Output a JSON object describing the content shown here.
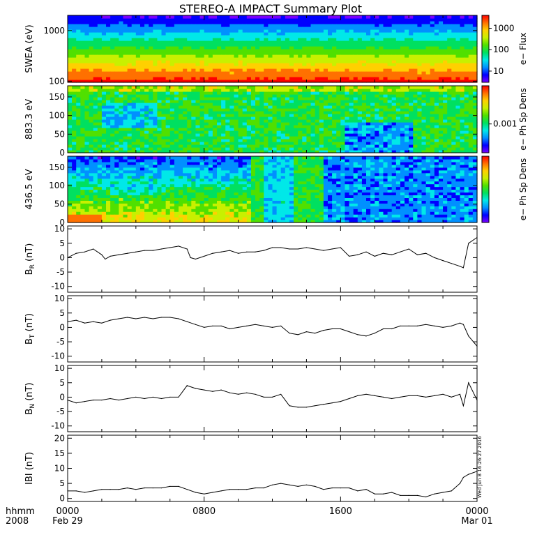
{
  "title": "STEREO-A IMPACT Summary Plot",
  "stamp": "Wed Jun  8 16:26:27 2016",
  "x_axis": {
    "row1_label": "hhmm",
    "row2_label": "2008",
    "ticks": [
      {
        "hours": 0,
        "top": "0000",
        "bottom": "Feb 29"
      },
      {
        "hours": 8,
        "top": "0800",
        "bottom": ""
      },
      {
        "hours": 16,
        "top": "1600",
        "bottom": ""
      },
      {
        "hours": 24,
        "top": "0000",
        "bottom": "Mar 01"
      }
    ]
  },
  "chart_data": [
    {
      "type": "heatmap",
      "panel": "swea",
      "ylabel": "SWEA (eV)",
      "yscale": "log",
      "ylim": [
        95,
        2000
      ],
      "yticks": [
        100,
        1000
      ],
      "colorbar_label": "e− Flux",
      "colorbar_scale": "log",
      "colorbar_range": [
        3,
        4000
      ],
      "colorbar_ticks": [
        10,
        100,
        1000
      ],
      "colors": [
        "#7b00ff",
        "#0000ff",
        "#0090ff",
        "#00e8e8",
        "#00e060",
        "#50e000",
        "#c8f000",
        "#ffd000",
        "#ff7000",
        "#ff0000"
      ]
    },
    {
      "type": "heatmap",
      "panel": "pad883",
      "ylabel": "883.3 eV",
      "ylim": [
        0,
        180
      ],
      "yticks": [
        0,
        50,
        100,
        150
      ],
      "colorbar_label": "e− Ph Sp Dens",
      "colorbar_ticks": [
        0.001
      ]
    },
    {
      "type": "heatmap",
      "panel": "pad436",
      "ylabel": "436.5 eV",
      "ylim": [
        0,
        180
      ],
      "yticks": [
        0,
        50,
        100,
        150
      ],
      "colorbar_label": "e− Ph Sp Dens",
      "colorbar_ticks": []
    },
    {
      "type": "line",
      "panel": "br",
      "ylabel": "B_R (nT)",
      "ylim": [
        -12,
        11
      ],
      "yticks": [
        -10,
        -5,
        0,
        5,
        10
      ],
      "x": [
        0,
        0.5,
        1,
        1.5,
        2,
        2.2,
        2.5,
        3,
        3.5,
        4,
        4.5,
        5,
        5.5,
        6,
        6.5,
        7,
        7.2,
        7.5,
        8,
        8.5,
        9,
        9.5,
        10,
        10.5,
        11,
        11.5,
        12,
        12.5,
        13,
        13.5,
        14,
        14.5,
        15,
        15.5,
        16,
        16.5,
        17,
        17.5,
        18,
        18.5,
        19,
        19.5,
        20,
        20.5,
        21,
        21.5,
        22,
        22.5,
        23,
        23.2,
        23.5,
        24
      ],
      "values": [
        0,
        1.5,
        2,
        3,
        1,
        -0.5,
        0.5,
        1,
        1.5,
        2,
        2.5,
        2.5,
        3,
        3.5,
        4,
        3,
        0,
        -0.5,
        0.5,
        1.5,
        2,
        2.5,
        1.5,
        2,
        2,
        2.5,
        3.5,
        3.5,
        3,
        3,
        3.5,
        3,
        2.5,
        3,
        3.5,
        0.5,
        1,
        2,
        0.5,
        1.5,
        1,
        2,
        3,
        1,
        1.5,
        0,
        -1,
        -2,
        -3,
        -3.5,
        5,
        7
      ]
    },
    {
      "type": "line",
      "panel": "bt",
      "ylabel": "B_T (nT)",
      "ylim": [
        -12,
        11
      ],
      "yticks": [
        -10,
        -5,
        0,
        5,
        10
      ],
      "x": [
        0,
        0.5,
        1,
        1.5,
        2,
        2.5,
        3,
        3.5,
        4,
        4.5,
        5,
        5.5,
        6,
        6.5,
        7,
        7.5,
        8,
        8.5,
        9,
        9.5,
        10,
        10.5,
        11,
        11.5,
        12,
        12.5,
        13,
        13.5,
        14,
        14.5,
        15,
        15.5,
        16,
        16.5,
        17,
        17.5,
        18,
        18.5,
        19,
        19.5,
        20,
        20.5,
        21,
        21.5,
        22,
        22.5,
        23,
        23.2,
        23.5,
        24
      ],
      "values": [
        2,
        2.5,
        1.5,
        2,
        1.5,
        2.5,
        3,
        3.5,
        3,
        3.5,
        3,
        3.5,
        3.5,
        3,
        2,
        1,
        0,
        0.5,
        0.5,
        -0.5,
        0,
        0.5,
        1,
        0.5,
        0,
        0.5,
        -2,
        -2.5,
        -1.5,
        -2,
        -1,
        -0.5,
        -0.5,
        -1.5,
        -2.5,
        -3,
        -2,
        -0.5,
        -0.5,
        0.5,
        0.5,
        0.5,
        1,
        0.5,
        0,
        0.5,
        1.5,
        1,
        -3,
        -6.5
      ]
    },
    {
      "type": "line",
      "panel": "bn",
      "ylabel": "B_N (nT)",
      "ylim": [
        -12,
        11
      ],
      "yticks": [
        -10,
        -5,
        0,
        5,
        10
      ],
      "x": [
        0,
        0.5,
        1,
        1.5,
        2,
        2.5,
        3,
        3.5,
        4,
        4.5,
        5,
        5.5,
        6,
        6.5,
        7,
        7.5,
        8,
        8.5,
        9,
        9.5,
        10,
        10.5,
        11,
        11.5,
        12,
        12.5,
        13,
        13.5,
        14,
        14.5,
        15,
        15.5,
        16,
        16.5,
        17,
        17.5,
        18,
        18.5,
        19,
        19.5,
        20,
        20.5,
        21,
        21.5,
        22,
        22.5,
        23,
        23.2,
        23.5,
        24
      ],
      "values": [
        -1,
        -2,
        -1.5,
        -1,
        -1,
        -0.5,
        -1,
        -0.5,
        0,
        -0.5,
        0,
        -0.5,
        0,
        0,
        4,
        3,
        2.5,
        2,
        2.5,
        1.5,
        1,
        1.5,
        1,
        0,
        0,
        1,
        -3,
        -3.5,
        -3.5,
        -3,
        -2.5,
        -2,
        -1.5,
        -0.5,
        0.5,
        1,
        0.5,
        0,
        -0.5,
        0,
        0.5,
        0.5,
        0,
        0.5,
        1,
        0,
        1,
        -3,
        5,
        -1
      ]
    },
    {
      "type": "line",
      "panel": "bmag",
      "ylabel": "IBI (nT)",
      "ylim": [
        -1,
        21
      ],
      "yticks": [
        0,
        5,
        10,
        15,
        20
      ],
      "x": [
        0,
        0.5,
        1,
        1.5,
        2,
        2.5,
        3,
        3.5,
        4,
        4.5,
        5,
        5.5,
        6,
        6.5,
        7,
        7.5,
        8,
        8.5,
        9,
        9.5,
        10,
        10.5,
        11,
        11.5,
        12,
        12.5,
        13,
        13.5,
        14,
        14.5,
        15,
        15.5,
        16,
        16.5,
        17,
        17.5,
        18,
        18.5,
        19,
        19.5,
        20,
        20.5,
        21,
        21.5,
        22,
        22.5,
        23,
        23.2,
        23.5,
        24
      ],
      "values": [
        2.5,
        2.5,
        2,
        2.5,
        3,
        3,
        3,
        3.5,
        3,
        3.5,
        3.5,
        3.5,
        4,
        4,
        3,
        2,
        1.5,
        2,
        2.5,
        3,
        3,
        3,
        3.5,
        3.5,
        4.5,
        5,
        4.5,
        4,
        4.5,
        4,
        3,
        3.5,
        3.5,
        3.5,
        2.5,
        3,
        1.5,
        1.5,
        2,
        1,
        1,
        1,
        0.5,
        1.5,
        2,
        2.5,
        5,
        7,
        8,
        9
      ]
    }
  ]
}
